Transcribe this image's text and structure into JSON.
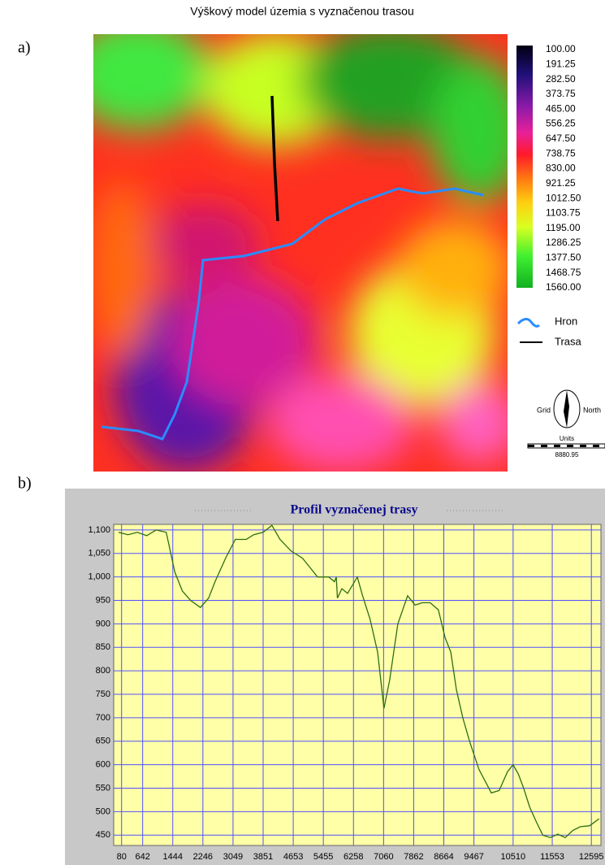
{
  "panel_labels": [
    "a)",
    "b)"
  ],
  "map": {
    "title": "Výškový model územia s vyznačenou trasou",
    "legend_scale": [
      "100.00",
      "191.25",
      "282.50",
      "373.75",
      "465.00",
      "556.25",
      "647.50",
      "738.75",
      "830.00",
      "921.25",
      "1012.50",
      "1103.75",
      "1195.00",
      "1286.25",
      "1377.50",
      "1468.75",
      "1560.00"
    ],
    "legend_items": [
      "Hron",
      "Trasa"
    ],
    "north_labels": [
      "Grid",
      "North"
    ],
    "scale_unit": "Units",
    "scale_value": "8880.95"
  },
  "chart_data": {
    "type": "line",
    "title": "Profil vyznačenej trasy",
    "color": "#2e6e12",
    "grid": true,
    "x": [
      0,
      250,
      500,
      750,
      1000,
      1270,
      1500,
      1700,
      1920,
      2180,
      2400,
      2570,
      2850,
      3110,
      3400,
      3600,
      3850,
      4085,
      4300,
      4600,
      4900,
      5100,
      5300,
      5600,
      5750,
      5800,
      5830,
      5950,
      6100,
      6360,
      6500,
      6700,
      6900,
      7070,
      7220,
      7440,
      7700,
      7900,
      8090,
      8300,
      8520,
      8700,
      8850,
      9000,
      9170,
      9350,
      9600,
      9800,
      9930,
      10140,
      10360,
      10510,
      10650,
      10790,
      10950,
      11120,
      11300,
      11500,
      11700,
      11900,
      12100,
      12300,
      12550,
      12800
    ],
    "values": [
      1095,
      1090,
      1095,
      1088,
      1100,
      1095,
      1010,
      970,
      950,
      935,
      955,
      990,
      1040,
      1080,
      1080,
      1090,
      1095,
      1110,
      1080,
      1055,
      1040,
      1020,
      1000,
      1000,
      990,
      1000,
      955,
      975,
      965,
      1000,
      960,
      910,
      840,
      720,
      780,
      900,
      960,
      940,
      945,
      945,
      930,
      870,
      840,
      760,
      700,
      650,
      590,
      560,
      540,
      545,
      585,
      600,
      580,
      550,
      510,
      480,
      450,
      445,
      452,
      445,
      460,
      468,
      470,
      485
    ],
    "xlim": [
      -130,
      12850
    ],
    "ylim": [
      428,
      1112
    ],
    "xticks": [
      80,
      642,
      1444,
      2246,
      3049,
      3851,
      4653,
      5455,
      6258,
      7060,
      7862,
      8664,
      9467,
      10510,
      11553,
      12595
    ],
    "yticks": [
      450,
      500,
      550,
      600,
      650,
      700,
      750,
      800,
      850,
      900,
      950,
      {
        "value": 1000,
        "label": "1,000"
      },
      {
        "value": 1050,
        "label": "1,050"
      },
      {
        "value": 1100,
        "label": "1,100"
      }
    ]
  }
}
